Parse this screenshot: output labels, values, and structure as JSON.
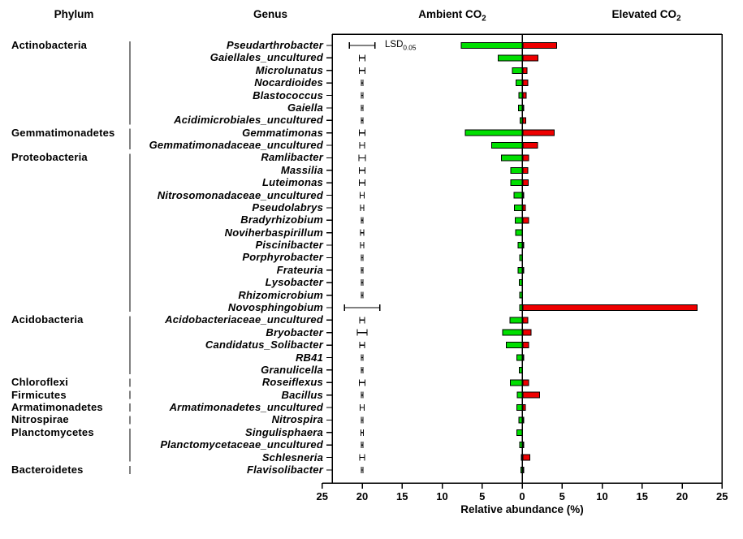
{
  "headers": {
    "phylum": "Phylum",
    "genus": "Genus",
    "ambient": {
      "text": "Ambient CO",
      "sub": "2"
    },
    "elevated": {
      "text": "Elevated CO",
      "sub": "2"
    }
  },
  "lsd_legend": {
    "text": "LSD",
    "sub": "0.05"
  },
  "axis": {
    "title": "Relative abundance (%)",
    "tick_labels": [
      "25",
      "20",
      "15",
      "10",
      "5",
      "0",
      "5",
      "10",
      "15",
      "20",
      "25"
    ]
  },
  "colors": {
    "ambient_bar": "#00df00",
    "elevated_bar": "#ee0000",
    "bar_border": "#000000",
    "axis_line": "#000000"
  },
  "chart_data": {
    "type": "bar",
    "orientation": "diverging-horizontal",
    "xlabel": "Relative abundance (%)",
    "xlim": [
      -25,
      25
    ],
    "grid": false,
    "legend_position": "column headers (Ambient CO2 left / Elevated CO2 right)",
    "series": [
      {
        "name": "Ambient CO2",
        "color": "#00df00",
        "side": "left"
      },
      {
        "name": "Elevated CO2",
        "color": "#ee0000",
        "side": "right"
      }
    ],
    "error_bars": {
      "label": "LSD 0.05",
      "centered_at_value": -20,
      "note": "half-width per row in lsd field"
    },
    "phyla": [
      {
        "label": "Actinobacteria",
        "start_row": 0,
        "end_row": 6
      },
      {
        "label": "Gemmatimonadetes",
        "start_row": 7,
        "end_row": 8
      },
      {
        "label": "Proteobacteria",
        "start_row": 9,
        "end_row": 21
      },
      {
        "label": "Acidobacteria",
        "start_row": 22,
        "end_row": 26
      },
      {
        "label": "Chloroflexi",
        "start_row": 27,
        "end_row": 27
      },
      {
        "label": "Firmicutes",
        "start_row": 28,
        "end_row": 28
      },
      {
        "label": "Armatimonadetes",
        "start_row": 29,
        "end_row": 29
      },
      {
        "label": "Nitrospirae",
        "start_row": 30,
        "end_row": 30
      },
      {
        "label": "Planctomycetes",
        "start_row": 31,
        "end_row": 33
      },
      {
        "label": "Bacteroidetes",
        "start_row": 34,
        "end_row": 34
      }
    ],
    "rows": [
      {
        "genus": "Pseudarthrobacter",
        "ambient": 7.6,
        "elevated": 4.2,
        "lsd": 1.6
      },
      {
        "genus": "Gaiellales_uncultured",
        "ambient": 3.0,
        "elevated": 1.9,
        "lsd": 0.35
      },
      {
        "genus": "Microlunatus",
        "ambient": 1.2,
        "elevated": 0.5,
        "lsd": 0.35
      },
      {
        "genus": "Nocardioides",
        "ambient": 0.75,
        "elevated": 0.6,
        "lsd": 0.1
      },
      {
        "genus": "Blastococcus",
        "ambient": 0.4,
        "elevated": 0.4,
        "lsd": 0.1
      },
      {
        "genus": "Gaiella",
        "ambient": 0.45,
        "elevated": 0.1,
        "lsd": 0.1
      },
      {
        "genus": "Acidimicrobiales_uncultured",
        "ambient": 0.25,
        "elevated": 0.35,
        "lsd": 0.1
      },
      {
        "genus": "Gemmatimonas",
        "ambient": 7.1,
        "elevated": 3.9,
        "lsd": 0.35
      },
      {
        "genus": "Gemmatimonadaceae_uncultured",
        "ambient": 3.8,
        "elevated": 1.85,
        "lsd": 0.3
      },
      {
        "genus": "Ramlibacter",
        "ambient": 2.6,
        "elevated": 0.7,
        "lsd": 0.4
      },
      {
        "genus": "Massilia",
        "ambient": 1.4,
        "elevated": 0.6,
        "lsd": 0.35
      },
      {
        "genus": "Luteimonas",
        "ambient": 1.4,
        "elevated": 0.65,
        "lsd": 0.35
      },
      {
        "genus": "Nitrosomonadaceae_uncultured",
        "ambient": 1.0,
        "elevated": 0.12,
        "lsd": 0.25
      },
      {
        "genus": "Pseudolabrys",
        "ambient": 0.95,
        "elevated": 0.3,
        "lsd": 0.2
      },
      {
        "genus": "Bradyrhizobium",
        "ambient": 0.85,
        "elevated": 0.7,
        "lsd": 0.1
      },
      {
        "genus": "Noviherbaspirillum",
        "ambient": 0.8,
        "elevated": 0,
        "lsd": 0.2
      },
      {
        "genus": "Piscinibacter",
        "ambient": 0.5,
        "elevated": 0.12,
        "lsd": 0.2
      },
      {
        "genus": "Porphyrobacter",
        "ambient": 0.3,
        "elevated": 0,
        "lsd": 0.1
      },
      {
        "genus": "Frateuria",
        "ambient": 0.5,
        "elevated": 0.12,
        "lsd": 0.1
      },
      {
        "genus": "Lysobacter",
        "ambient": 0.35,
        "elevated": 0,
        "lsd": 0.1
      },
      {
        "genus": "Rhizomicrobium",
        "ambient": 0.3,
        "elevated": 0,
        "lsd": 0.1
      },
      {
        "genus": "Novosphingobium",
        "ambient": 0.3,
        "elevated": 21.8,
        "lsd": 2.2
      },
      {
        "genus": "Acidobacteriaceae_uncultured",
        "ambient": 1.5,
        "elevated": 0.6,
        "lsd": 0.3
      },
      {
        "genus": "Bryobacter",
        "ambient": 2.45,
        "elevated": 1.0,
        "lsd": 0.6
      },
      {
        "genus": "Candidatus_Solibacter",
        "ambient": 2.0,
        "elevated": 0.7,
        "lsd": 0.3
      },
      {
        "genus": "RB41",
        "ambient": 0.65,
        "elevated": 0.12,
        "lsd": 0.1
      },
      {
        "genus": "Granulicella",
        "ambient": 0.35,
        "elevated": 0,
        "lsd": 0.1
      },
      {
        "genus": "Roseiflexus",
        "ambient": 1.45,
        "elevated": 0.7,
        "lsd": 0.35
      },
      {
        "genus": "Bacillus",
        "ambient": 0.6,
        "elevated": 2.1,
        "lsd": 0.1
      },
      {
        "genus": "Armatimonadetes_uncultured",
        "ambient": 0.65,
        "elevated": 0.3,
        "lsd": 0.25
      },
      {
        "genus": "Nitrospira",
        "ambient": 0.4,
        "elevated": 0.12,
        "lsd": 0.1
      },
      {
        "genus": "Singulisphaera",
        "ambient": 0.65,
        "elevated": 0,
        "lsd": 0.15
      },
      {
        "genus": "Planctomycetaceae_uncultured",
        "ambient": 0.3,
        "elevated": 0.12,
        "lsd": 0.1
      },
      {
        "genus": "Schlesneria",
        "ambient": 0.05,
        "elevated": 0.85,
        "lsd": 0.3
      },
      {
        "genus": "Flavisolibacter",
        "ambient": 0.15,
        "elevated": 0.1,
        "lsd": 0.1
      }
    ]
  }
}
